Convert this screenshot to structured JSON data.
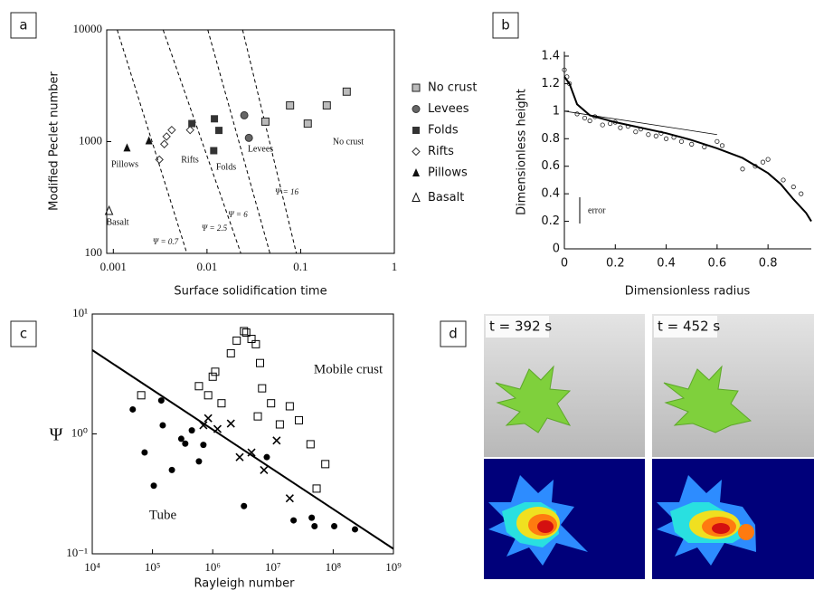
{
  "chart_data": [
    {
      "type": "scatter",
      "panel": "a",
      "xlabel": "Surface solidification time",
      "ylabel": "Modified Peclet number",
      "xlog": true,
      "ylog": true,
      "xlim": [
        0.00085,
        1
      ],
      "ylim": [
        100,
        10000
      ],
      "xticks": [
        0.001,
        0.01,
        0.1,
        1
      ],
      "yticks": [
        100,
        1000,
        10000
      ],
      "series": [
        {
          "name": "No crust",
          "marker": "square-dot",
          "color": "#222",
          "x": [
            0.042,
            0.077,
            0.119,
            0.19,
            0.31
          ],
          "values": [
            1510,
            2110,
            1450,
            2110,
            2800
          ]
        },
        {
          "name": "Levees",
          "marker": "circle",
          "color": "#333",
          "x": [
            0.025,
            0.028
          ],
          "values": [
            1720,
            1080
          ]
        },
        {
          "name": "Folds",
          "marker": "square",
          "color": "#333",
          "x": [
            0.0069,
            0.012,
            0.0134,
            0.0118
          ],
          "values": [
            1450,
            1600,
            1260,
            830
          ]
        },
        {
          "name": "Rifts",
          "marker": "diamond",
          "color": "#333",
          "x": [
            0.0031,
            0.0035,
            0.0037,
            0.0042,
            0.0066
          ],
          "values": [
            690,
            950,
            1110,
            1270,
            1270
          ]
        },
        {
          "name": "Pillows",
          "marker": "triangle",
          "color": "#111",
          "x": [
            0.0014,
            0.0024
          ],
          "values": [
            880,
            1020
          ]
        },
        {
          "name": "Basalt",
          "marker": "triangle-open",
          "color": "#111",
          "x": [
            0.0009
          ],
          "values": [
            240
          ]
        }
      ],
      "guides": [
        {
          "label": "Ψ = 0.7",
          "x": [
            0.0011,
            0.0061
          ],
          "values": [
            10000,
            100
          ]
        },
        {
          "label": "Ψ = 2.5",
          "x": [
            0.0034,
            0.023
          ],
          "values": [
            10000,
            100
          ]
        },
        {
          "label": "Ψ = 6",
          "x": [
            0.0102,
            0.047
          ],
          "values": [
            10000,
            100
          ]
        },
        {
          "label": "Ψ = 16",
          "x": [
            0.024,
            0.09
          ],
          "values": [
            10000,
            100
          ]
        }
      ],
      "annotations": [
        "Pillows",
        "Rifts",
        "Folds",
        "Levees",
        "No crust",
        "Basalt"
      ]
    },
    {
      "type": "scatter",
      "panel": "b",
      "xlabel": "Dimensionless radius",
      "ylabel": "Dimensionless height",
      "xlim": [
        0,
        0.97
      ],
      "ylim": [
        0,
        1.4
      ],
      "xticks": [
        0,
        0.2,
        0.4,
        0.6,
        0.8
      ],
      "yticks": [
        0,
        0.2,
        0.4,
        0.6,
        0.8,
        1,
        1.2,
        1.4
      ],
      "series": [
        {
          "marker": "circle-open",
          "color": "#222",
          "x": [
            0,
            0.01,
            0.02,
            0.05,
            0.08,
            0.1,
            0.12,
            0.15,
            0.18,
            0.2,
            0.22,
            0.25,
            0.28,
            0.3,
            0.33,
            0.36,
            0.38,
            0.4,
            0.43,
            0.46,
            0.5,
            0.55,
            0.6,
            0.62,
            0.7,
            0.75,
            0.78,
            0.8,
            0.86,
            0.9,
            0.93
          ],
          "values": [
            1.3,
            1.25,
            1.2,
            0.98,
            0.95,
            0.93,
            0.96,
            0.9,
            0.91,
            0.92,
            0.88,
            0.89,
            0.85,
            0.87,
            0.83,
            0.82,
            0.84,
            0.8,
            0.81,
            0.78,
            0.76,
            0.74,
            0.78,
            0.75,
            0.58,
            0.6,
            0.63,
            0.65,
            0.5,
            0.45,
            0.4
          ]
        },
        {
          "marker": "line",
          "color": "#000",
          "x": [
            0,
            0.02,
            0.05,
            0.1,
            0.2,
            0.3,
            0.4,
            0.5,
            0.6,
            0.7,
            0.8,
            0.85,
            0.9,
            0.95,
            0.97
          ],
          "values": [
            1.25,
            1.2,
            1.05,
            0.97,
            0.92,
            0.88,
            0.84,
            0.79,
            0.73,
            0.66,
            0.55,
            0.47,
            0.36,
            0.26,
            0.2
          ]
        },
        {
          "marker": "thin-line",
          "color": "#000",
          "x": [
            0,
            0.6
          ],
          "values": [
            1,
            0.83
          ]
        }
      ],
      "annotations": [
        "error"
      ]
    },
    {
      "type": "scatter",
      "panel": "c",
      "xlabel": "Rayleigh number",
      "ylabel": "Ψ",
      "xlog": true,
      "ylog": true,
      "xlim": [
        10000,
        1000000000
      ],
      "ylim": [
        0.1,
        10
      ],
      "xticks": [
        {
          "value": 10000,
          "label": "10⁴"
        },
        {
          "value": 100000,
          "label": "10⁵"
        },
        {
          "value": 1000000,
          "label": "10⁶"
        },
        {
          "value": 10000000,
          "label": "10⁷"
        },
        {
          "value": 100000000,
          "label": "10⁸"
        },
        {
          "value": 1000000000,
          "label": "10⁹"
        }
      ],
      "yticks": [
        {
          "value": 0.1,
          "label": "10⁻¹"
        },
        {
          "value": 1,
          "label": "10⁰"
        },
        {
          "value": 10,
          "label": "10¹"
        }
      ],
      "series": [
        {
          "marker": "dot",
          "color": "#000",
          "x": [
            47000,
            74000,
            105000,
            140000,
            148000,
            210000,
            300000,
            350000,
            450000,
            590000,
            700000,
            3300000,
            7900000,
            22000000,
            44000000,
            49000000,
            104000000,
            230000000
          ],
          "values": [
            1.6,
            0.7,
            0.37,
            1.9,
            1.18,
            0.5,
            0.91,
            0.83,
            1.07,
            0.59,
            0.81,
            0.25,
            0.64,
            0.19,
            0.2,
            0.17,
            0.17,
            0.16
          ]
        },
        {
          "marker": "square-open",
          "color": "#000",
          "x": [
            65000,
            590000,
            840000,
            1000000,
            1100000,
            1400000,
            2000000,
            2500000,
            3300000,
            3600000,
            4400000,
            5200000,
            5600000,
            6100000,
            6600000,
            9300000,
            13000000,
            19000000,
            27000000,
            42000000,
            53000000,
            74000000
          ],
          "values": [
            2.1,
            2.5,
            2.1,
            3.0,
            3.3,
            1.8,
            4.7,
            6.0,
            7.2,
            7.0,
            6.2,
            5.6,
            1.4,
            3.9,
            2.4,
            1.8,
            1.2,
            1.7,
            1.3,
            0.82,
            0.35,
            0.56
          ]
        },
        {
          "marker": "cross",
          "color": "#000",
          "x": [
            700000,
            840000,
            1200000,
            2000000,
            2800000,
            4400000,
            7100000,
            11500000,
            19000000
          ],
          "values": [
            1.18,
            1.35,
            1.1,
            1.22,
            0.64,
            0.7,
            0.5,
            0.88,
            0.29
          ]
        },
        {
          "marker": "line",
          "color": "#000",
          "x": [
            10000,
            1000000000
          ],
          "values": [
            5,
            0.11
          ]
        }
      ],
      "annotations": [
        "Mobile crust",
        "Tube"
      ]
    }
  ],
  "figure_d": {
    "panel": "d",
    "frames": [
      "t = 392 s",
      "t = 452 s"
    ]
  }
}
